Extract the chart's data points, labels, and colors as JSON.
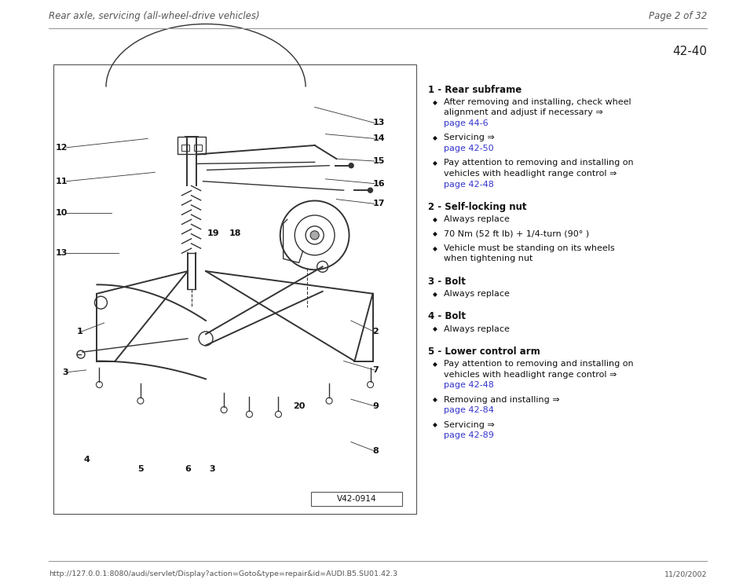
{
  "page_title_left": "Rear axle, servicing (all-wheel-drive vehicles)",
  "page_title_right": "Page 2 of 32",
  "page_number": "42-40",
  "bg_color": "#ffffff",
  "header_line_color": "#999999",
  "footer_line_color": "#999999",
  "footer_url": "http://127.0.0.1:8080/audi/servlet/Display?action=Goto&type=repair&id=AUDI.B5.SU01.42.3",
  "footer_date": "11/20/2002",
  "diagram_label": "V42-0914",
  "diagram_bg": "#ffffff",
  "diagram_border": "#555555",
  "draw_color": "#333333",
  "items": [
    {
      "number": "1",
      "title": "Rear subframe",
      "bullets": [
        {
          "lines": [
            "After removing and installing, check wheel",
            "alignment and adjust if necessary ⇒ "
          ],
          "link": "page 44-6"
        },
        {
          "lines": [
            "Servicing ⇒ "
          ],
          "link": "page 42-50"
        },
        {
          "lines": [
            "Pay attention to removing and installing on",
            "vehicles with headlight range control ⇒"
          ],
          "link": "page 42-48"
        }
      ]
    },
    {
      "number": "2",
      "title": "Self-locking nut",
      "bullets": [
        {
          "lines": [
            "Always replace"
          ],
          "link": null
        },
        {
          "lines": [
            "70 Nm (52 ft lb) + 1/4-turn (90° )"
          ],
          "link": null
        },
        {
          "lines": [
            "Vehicle must be standing on its wheels",
            "when tightening nut"
          ],
          "link": null
        }
      ]
    },
    {
      "number": "3",
      "title": "Bolt",
      "bullets": [
        {
          "lines": [
            "Always replace"
          ],
          "link": null
        }
      ]
    },
    {
      "number": "4",
      "title": "Bolt",
      "bullets": [
        {
          "lines": [
            "Always replace"
          ],
          "link": null
        }
      ]
    },
    {
      "number": "5",
      "title": "Lower control arm",
      "bullets": [
        {
          "lines": [
            "Pay attention to removing and installing on",
            "vehicles with headlight range control ⇒"
          ],
          "link": "page 42-48"
        },
        {
          "lines": [
            "Removing and installing ⇒ "
          ],
          "link": "page 42-84"
        },
        {
          "lines": [
            "Servicing ⇒ "
          ],
          "link": "page 42-89"
        }
      ]
    }
  ]
}
